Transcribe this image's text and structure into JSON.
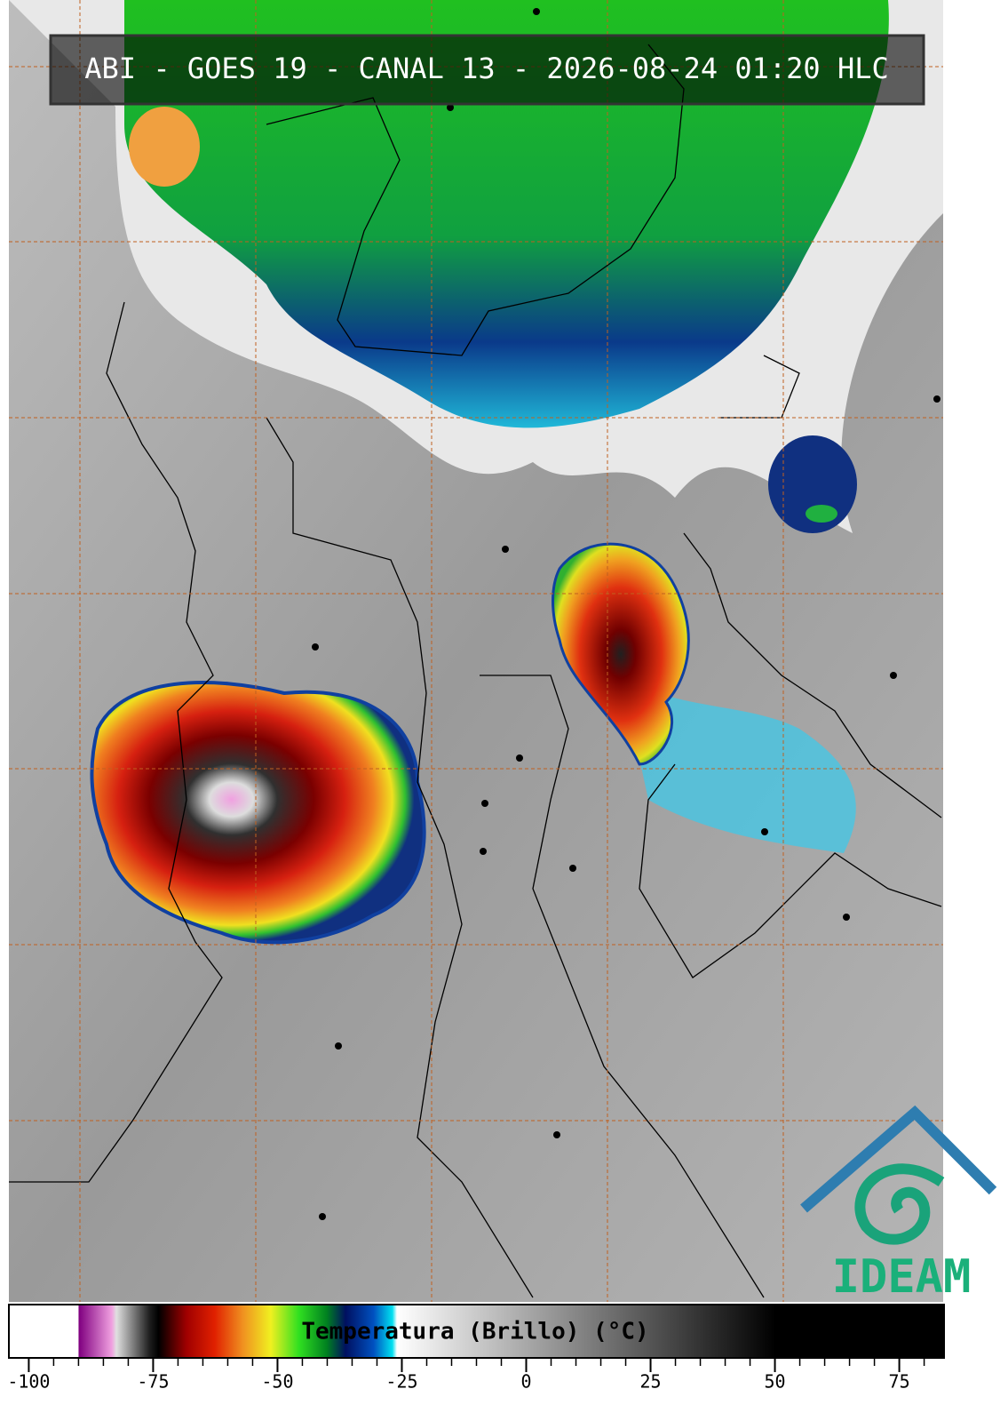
{
  "header": {
    "title": "ABI - GOES 19 - CANAL 13 - 2026-08-24 01:20 HLC"
  },
  "logo": {
    "text": "IDEAM"
  },
  "colorbar": {
    "label": "Temperatura (Brillo) (°C)",
    "xlim": [
      -104,
      84
    ],
    "ticks": [
      -100,
      -75,
      -50,
      -25,
      0,
      25,
      50,
      75
    ],
    "minor_ticks": [
      -95,
      -90,
      -85,
      -80,
      -70,
      -65,
      -60,
      -55,
      -45,
      -40,
      -35,
      -30,
      -20,
      -15,
      -10,
      -5,
      5,
      10,
      15,
      20,
      30,
      35,
      40,
      45,
      55,
      60,
      65,
      70,
      80
    ]
  }
}
